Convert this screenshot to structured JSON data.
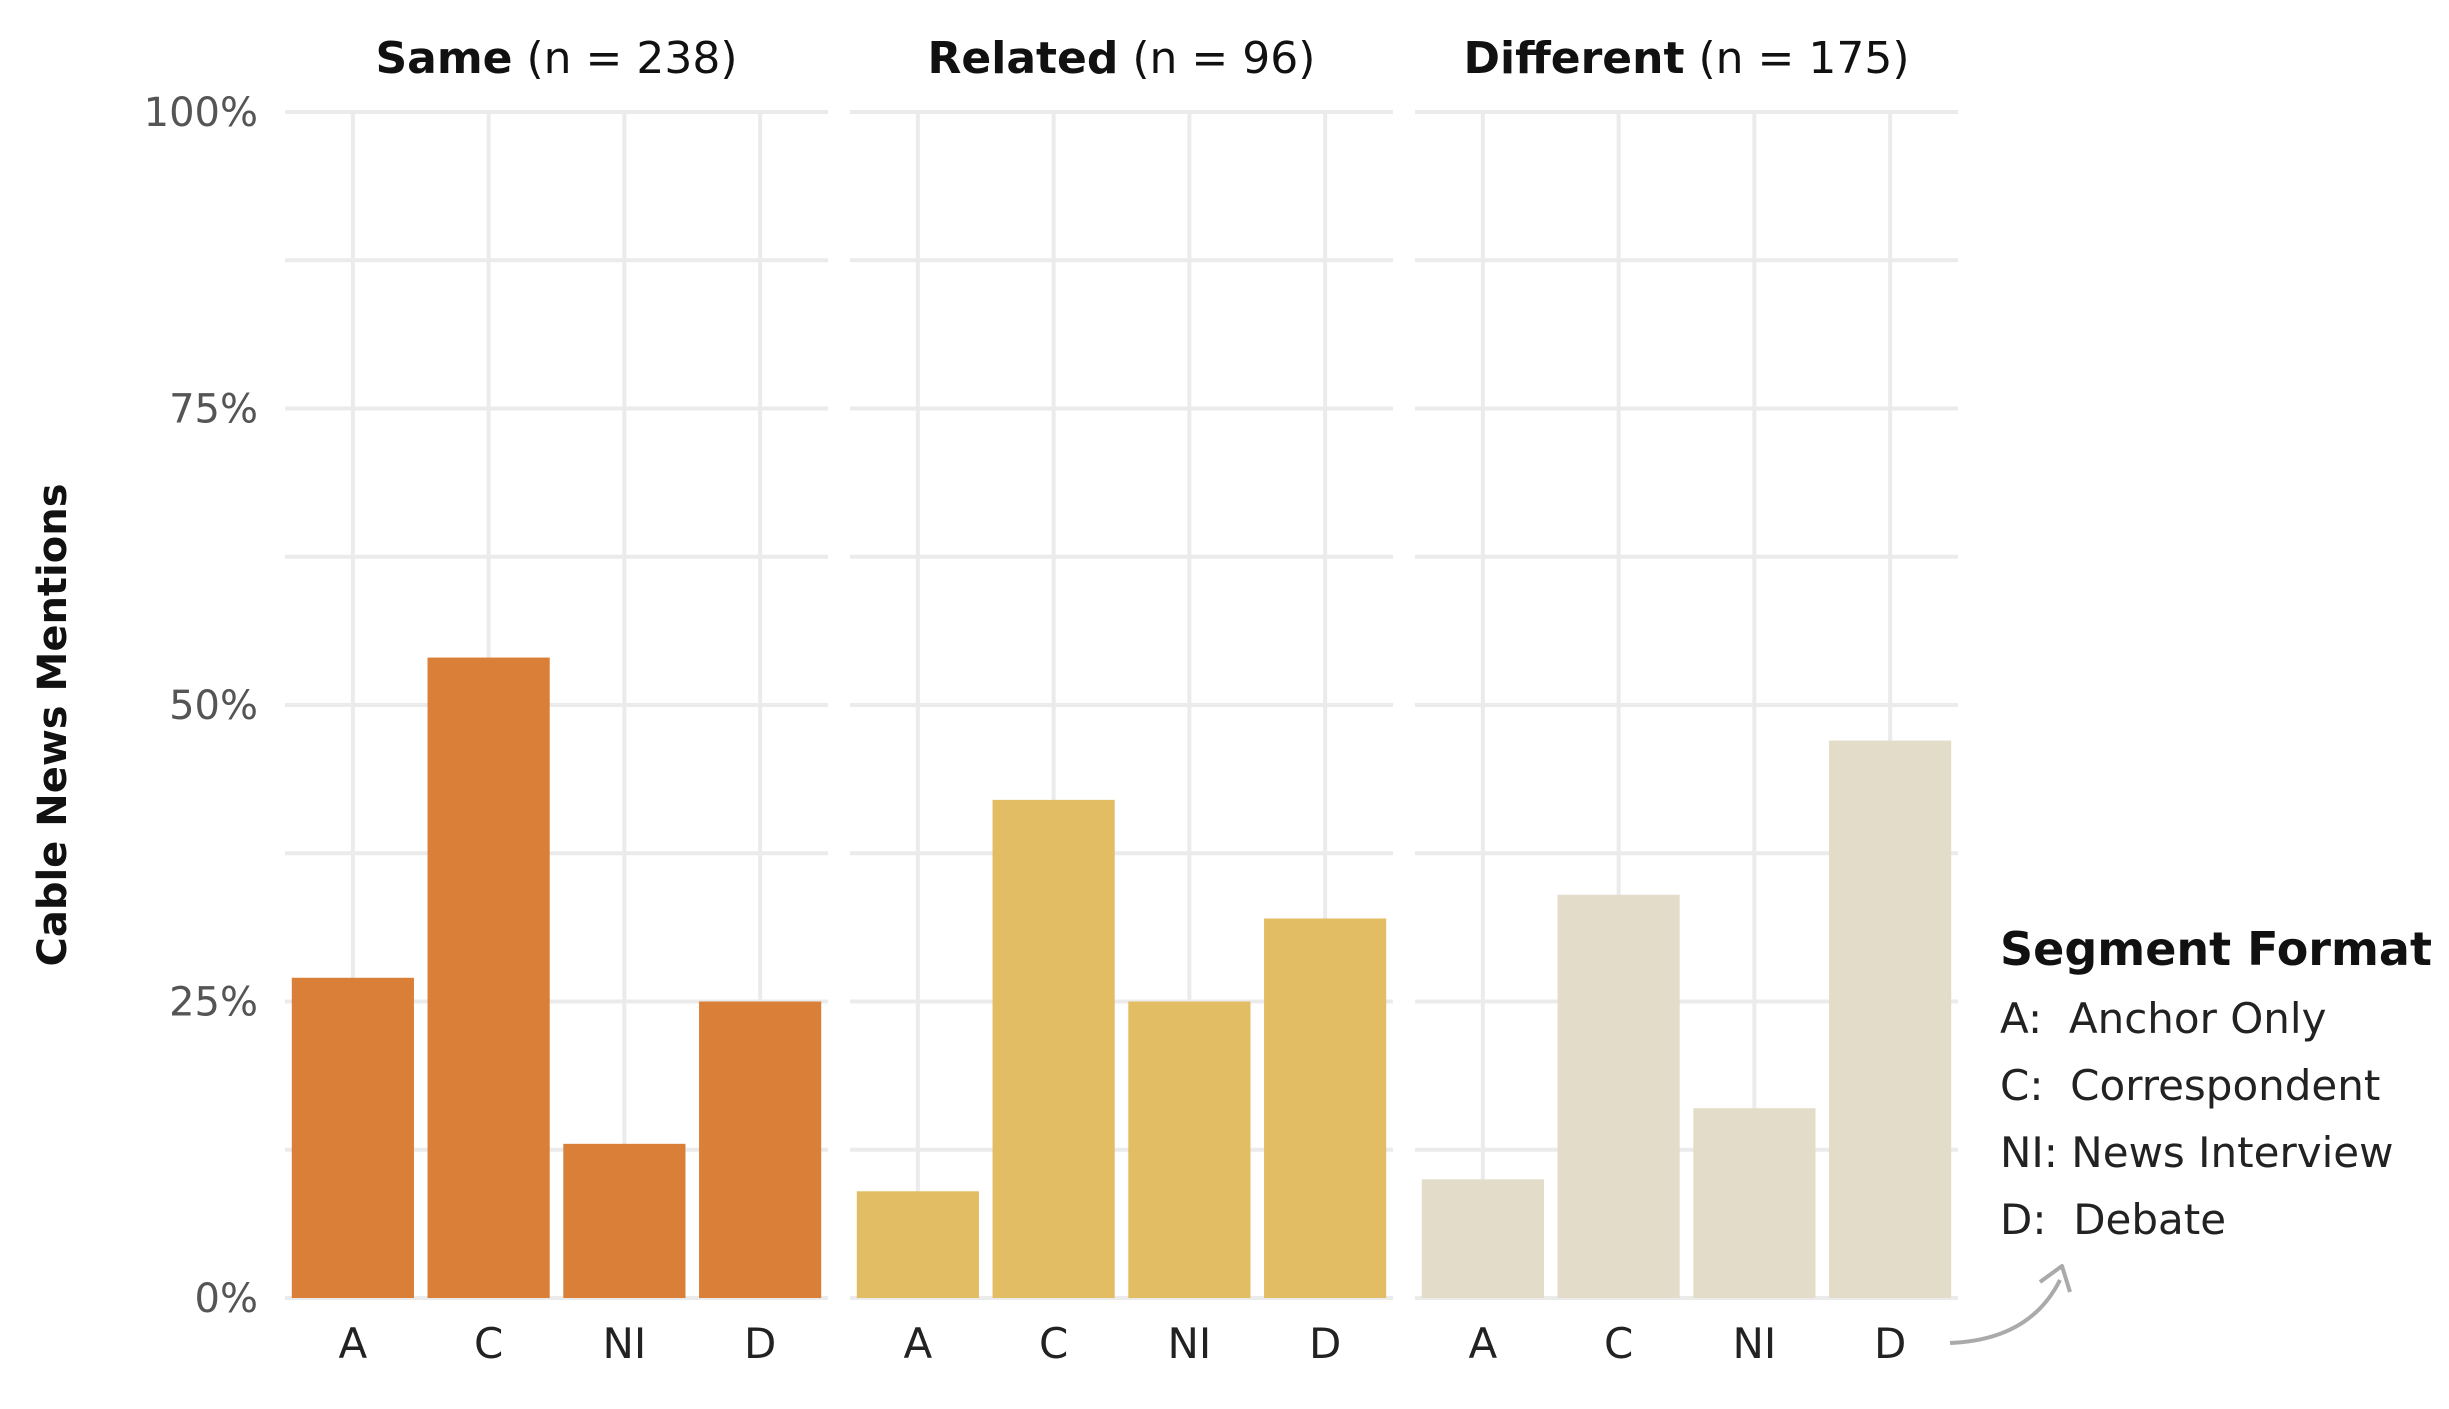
{
  "chart_data": {
    "type": "bar",
    "ylabel": "Cable News Mentions",
    "ylim": [
      0,
      100
    ],
    "yticks": [
      0,
      25,
      50,
      75,
      100
    ],
    "ytick_labels": [
      "0%",
      "25%",
      "50%",
      "75%",
      "100%"
    ],
    "grid": true,
    "categories": [
      "A",
      "C",
      "NI",
      "D"
    ],
    "facets": [
      {
        "name": "Same",
        "n_label": "(n = 238)",
        "color": "#d97f38",
        "values": [
          27,
          54,
          13,
          25
        ]
      },
      {
        "name": "Related",
        "n_label": "(n = 96)",
        "color": "#e3bd63",
        "values": [
          9,
          42,
          25,
          32
        ]
      },
      {
        "name": "Different",
        "n_label": "(n = 175)",
        "color": "#e3dcc8",
        "values": [
          10,
          34,
          16,
          47
        ]
      }
    ],
    "legend": {
      "title": "Segment Format",
      "placement": "right",
      "items": [
        "A:  Anchor Only",
        "C:  Correspondent",
        "NI: News Interview",
        "D:  Debate"
      ]
    }
  }
}
